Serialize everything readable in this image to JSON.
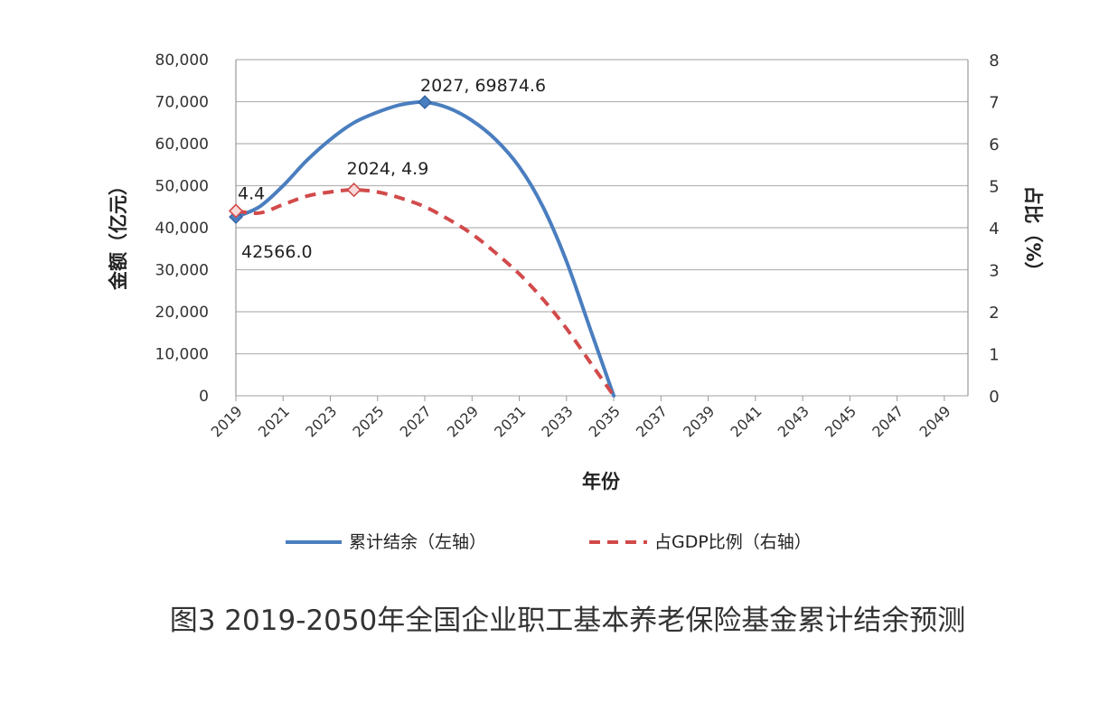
{
  "chart_data": {
    "type": "line",
    "title": "",
    "caption": "图3  2019-2050年全国企业职工基本养老保险基金累计结余预测",
    "xlabel": "年份",
    "ylabel_left": "金额（亿元）",
    "ylabel_right": "占比（%）",
    "x_ticks": [
      "2019",
      "2021",
      "2023",
      "2025",
      "2027",
      "2029",
      "2031",
      "2033",
      "2035",
      "2037",
      "2039",
      "2041",
      "2043",
      "2045",
      "2047",
      "2049"
    ],
    "xlim": [
      2019,
      2050
    ],
    "ylim_left": [
      0,
      80000
    ],
    "ylim_right": [
      0,
      8
    ],
    "y_ticks_left": [
      "0",
      "10,000",
      "20,000",
      "30,000",
      "40,000",
      "50,000",
      "60,000",
      "70,000",
      "80,000"
    ],
    "y_ticks_right": [
      "0",
      "1",
      "2",
      "3",
      "4",
      "5",
      "6",
      "7",
      "8"
    ],
    "grid": true,
    "legend_position": "bottom",
    "series": [
      {
        "name": "累计结余（左轴）",
        "axis": "left",
        "color": "#4a7ebf",
        "style": "solid",
        "x": [
          2019,
          2020,
          2021,
          2022,
          2023,
          2024,
          2025,
          2026,
          2027,
          2028,
          2029,
          2030,
          2031,
          2032,
          2033,
          2034,
          2035
        ],
        "y": [
          42566.0,
          45000,
          50000,
          56000,
          61000,
          65000,
          67500,
          69300,
          69874.6,
          68500,
          65500,
          61000,
          54500,
          45000,
          32000,
          16000,
          0
        ],
        "markers": [
          {
            "x": 2019,
            "y": 42566.0,
            "label": "42566.0"
          },
          {
            "x": 2027,
            "y": 69874.6,
            "label": "2027, 69874.6"
          }
        ]
      },
      {
        "name": "占GDP比例（右轴）",
        "axis": "right",
        "color": "#d24a4a",
        "style": "dashed",
        "x": [
          2019,
          2020,
          2021,
          2022,
          2023,
          2024,
          2025,
          2026,
          2027,
          2028,
          2029,
          2030,
          2031,
          2032,
          2033,
          2034,
          2035
        ],
        "y": [
          4.4,
          4.35,
          4.55,
          4.75,
          4.85,
          4.9,
          4.85,
          4.7,
          4.5,
          4.2,
          3.85,
          3.4,
          2.9,
          2.3,
          1.6,
          0.8,
          0
        ],
        "markers": [
          {
            "x": 2019,
            "y": 4.4,
            "label": "4.4"
          },
          {
            "x": 2024,
            "y": 4.9,
            "label": "2024, 4.9"
          }
        ]
      }
    ]
  }
}
